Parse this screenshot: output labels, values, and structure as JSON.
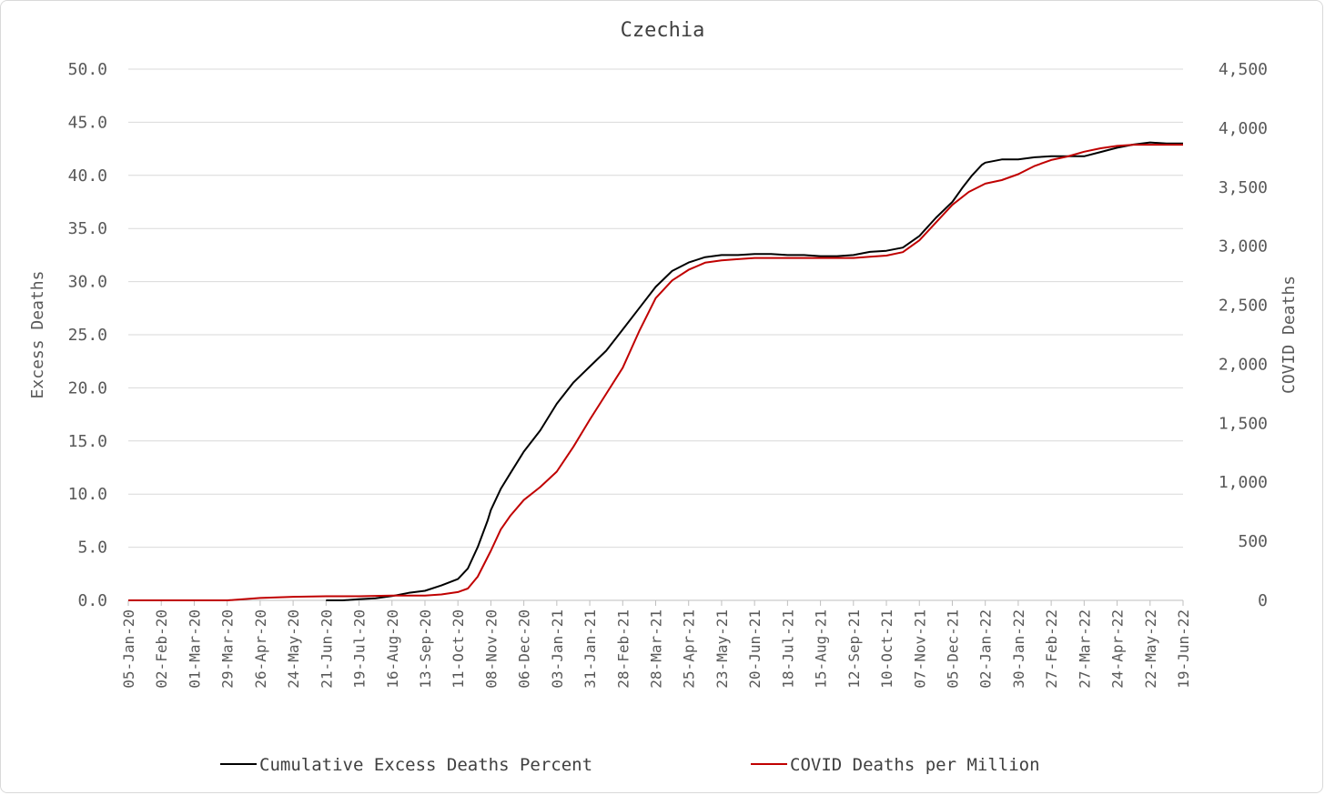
{
  "chart_data": {
    "type": "line",
    "title": "Czechia",
    "ylabel": "Excess Deaths",
    "y2label": "COVID Deaths",
    "ylim": [
      0,
      50
    ],
    "y2lim": [
      0,
      4500
    ],
    "yticks": [
      "0.0",
      "5.0",
      "10.0",
      "15.0",
      "20.0",
      "25.0",
      "30.0",
      "35.0",
      "40.0",
      "45.0",
      "50.0"
    ],
    "y2ticks": [
      "0",
      "500",
      "1,000",
      "1,500",
      "2,000",
      "2,500",
      "3,000",
      "3,500",
      "4,000",
      "4,500"
    ],
    "xticks": [
      "05-Jan-20",
      "02-Feb-20",
      "01-Mar-20",
      "29-Mar-20",
      "26-Apr-20",
      "24-May-20",
      "21-Jun-20",
      "19-Jul-20",
      "16-Aug-20",
      "13-Sep-20",
      "11-Oct-20",
      "08-Nov-20",
      "06-Dec-20",
      "03-Jan-21",
      "31-Jan-21",
      "28-Feb-21",
      "28-Mar-21",
      "25-Apr-21",
      "23-May-21",
      "20-Jun-21",
      "18-Jul-21",
      "15-Aug-21",
      "12-Sep-21",
      "10-Oct-21",
      "07-Nov-21",
      "05-Dec-21",
      "02-Jan-22",
      "30-Jan-22",
      "27-Feb-22",
      "27-Mar-22",
      "24-Apr-22",
      "22-May-22",
      "19-Jun-22"
    ],
    "grid": true,
    "legend_position": "bottom",
    "series": [
      {
        "name": "Cumulative Excess Deaths Percent",
        "axis": "left",
        "color": "#000000",
        "x": [
          6,
          6.5,
          7,
          7.5,
          8,
          8.5,
          9,
          9.5,
          10,
          10.3,
          10.6,
          10.9,
          11,
          11.3,
          11.6,
          11.9,
          12,
          12.5,
          13,
          13.5,
          14,
          14.5,
          15,
          15.5,
          16,
          16.5,
          17,
          17.5,
          18,
          18.5,
          19,
          19.5,
          20,
          20.5,
          21,
          21.5,
          22,
          22.5,
          23,
          23.5,
          24,
          24.5,
          25,
          25.3,
          25.6,
          25.9,
          26,
          26.5,
          27,
          27.5,
          28,
          28.5,
          29,
          29.5,
          30,
          30.5,
          31,
          31.5,
          32
        ],
        "y": [
          0.0,
          0.0,
          0.1,
          0.2,
          0.4,
          0.7,
          0.9,
          1.4,
          2.0,
          3.0,
          5.0,
          7.5,
          8.5,
          10.5,
          12.0,
          13.5,
          14.0,
          16.0,
          18.5,
          20.5,
          22.0,
          23.5,
          25.5,
          27.5,
          29.5,
          31.0,
          31.8,
          32.3,
          32.5,
          32.5,
          32.6,
          32.6,
          32.5,
          32.5,
          32.4,
          32.4,
          32.5,
          32.8,
          32.9,
          33.2,
          34.3,
          36.0,
          37.5,
          38.8,
          40.0,
          41.0,
          41.2,
          41.5,
          41.5,
          41.7,
          41.8,
          41.8,
          41.8,
          42.2,
          42.6,
          42.9,
          43.1,
          43.0,
          43.0
        ]
      },
      {
        "name": "COVID Deaths per Million",
        "axis": "right",
        "color": "#c00000",
        "x": [
          0,
          3,
          4,
          5,
          6,
          7,
          8,
          9,
          9.5,
          10,
          10.3,
          10.6,
          11,
          11.3,
          11.6,
          12,
          12.5,
          13,
          13.5,
          14,
          14.5,
          15,
          15.5,
          16,
          16.5,
          17,
          17.5,
          18,
          18.5,
          19,
          19.5,
          20,
          20.5,
          21,
          21.5,
          22,
          22.5,
          23,
          23.5,
          24,
          24.5,
          25,
          25.5,
          26,
          26.5,
          27,
          27.5,
          28,
          28.5,
          29,
          29.5,
          30,
          30.5,
          31,
          31.5,
          32
        ],
        "y": [
          0,
          0,
          20,
          30,
          35,
          35,
          40,
          40,
          50,
          70,
          100,
          200,
          420,
          600,
          720,
          850,
          960,
          1090,
          1300,
          1530,
          1750,
          1970,
          2280,
          2560,
          2710,
          2800,
          2860,
          2880,
          2890,
          2900,
          2900,
          2900,
          2900,
          2900,
          2900,
          2900,
          2910,
          2920,
          2950,
          3050,
          3200,
          3350,
          3460,
          3530,
          3560,
          3610,
          3680,
          3730,
          3760,
          3800,
          3830,
          3850,
          3860,
          3860,
          3860,
          3860
        ]
      }
    ]
  }
}
